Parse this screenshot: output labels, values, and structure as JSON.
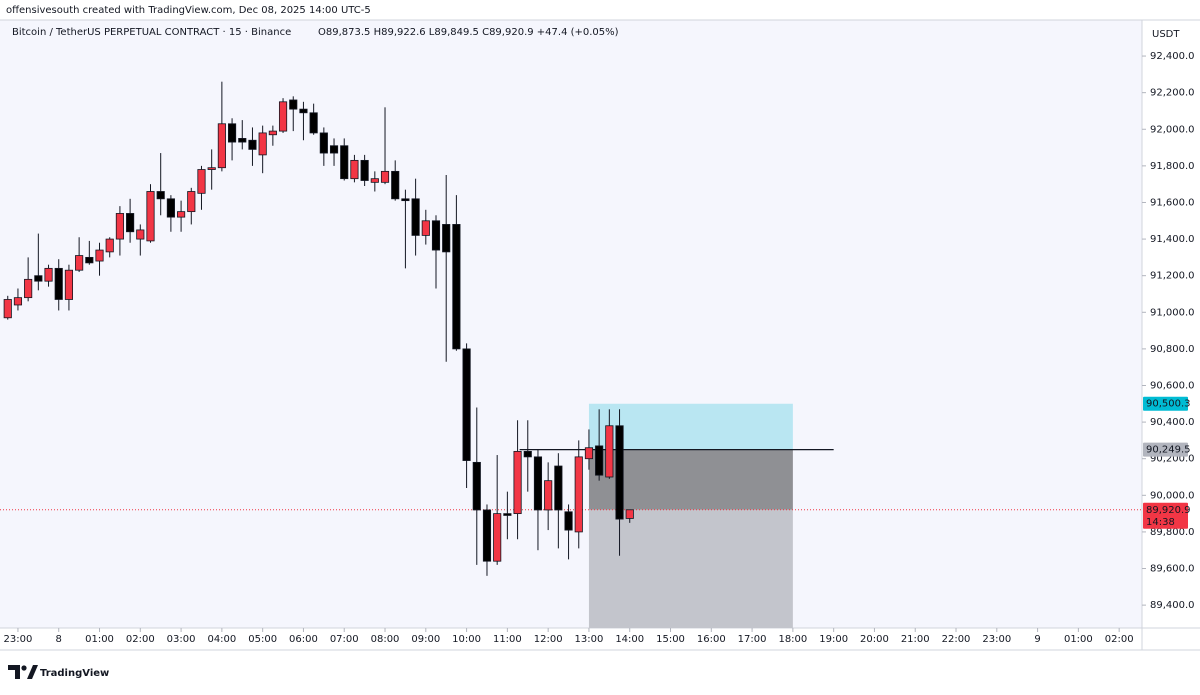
{
  "header": {
    "credit": "offensivesouth created with TradingView.com, Dec 08, 2025 14:00 UTC-5",
    "title": "Bitcoin / TetherUS PERPETUAL CONTRACT · 15 · Binance",
    "ohlc": "O89,873.5  H89,922.6  L89,849.5  C89,920.9  +47.4 (+0.05%)",
    "currency": "USDT"
  },
  "footer": {
    "brand": "TradingView"
  },
  "chart_data": {
    "type": "candlestick",
    "up_color": "#f23645",
    "down_color": "#000000",
    "x": [
      -0.25,
      0,
      0.25,
      0.5,
      0.75,
      1,
      1.25,
      1.5,
      1.75,
      2,
      2.25,
      2.5,
      2.75,
      3,
      3.25,
      3.5,
      3.75,
      4,
      4.25,
      4.5,
      4.75,
      5,
      5.25,
      5.5,
      5.75,
      6,
      6.25,
      6.5,
      6.75,
      7,
      7.25,
      7.5,
      7.75,
      8,
      8.25,
      8.5,
      8.75,
      9,
      9.25,
      9.5,
      9.75,
      10,
      10.25,
      10.5,
      10.75,
      11,
      11.25,
      11.5,
      11.75,
      12,
      12.25,
      12.5,
      12.75,
      13,
      13.25,
      13.5,
      13.75,
      14,
      14.25,
      14.5,
      14.75,
      15
    ],
    "open": [
      90970,
      91040,
      91080,
      91200,
      91170,
      91240,
      91070,
      91230,
      91300,
      91280,
      91330,
      91400,
      91540,
      91400,
      91390,
      91660,
      91620,
      91520,
      91550,
      91650,
      91780,
      91790,
      92030,
      91950,
      91940,
      91860,
      91970,
      91990,
      92160,
      92110,
      92090,
      91980,
      91910,
      91910,
      91730,
      91830,
      91710,
      91710,
      91770,
      91620,
      91620,
      91420,
      91500,
      91480,
      91480,
      90800,
      90180,
      89920,
      89640,
      89900,
      89900,
      90240,
      90210,
      89920,
      90160,
      89910,
      89800,
      90200,
      90270,
      90100,
      90380,
      89873.5
    ],
    "high": [
      91090,
      91130,
      91300,
      91430,
      91260,
      91290,
      91260,
      91410,
      91390,
      91380,
      91410,
      91580,
      91620,
      91480,
      91700,
      91870,
      91640,
      91610,
      91680,
      91800,
      91890,
      92260,
      92060,
      92050,
      92010,
      92020,
      92020,
      92170,
      92180,
      92150,
      92140,
      92010,
      91950,
      91950,
      91860,
      91860,
      91770,
      92120,
      91830,
      91670,
      91730,
      91560,
      91530,
      91750,
      91640,
      90830,
      90480,
      89950,
      90220,
      90020,
      90410,
      90410,
      90250,
      90180,
      90230,
      89950,
      90300,
      90360,
      90470,
      90470,
      90470,
      89922.6
    ],
    "low": [
      90960,
      91010,
      91060,
      91120,
      91140,
      91010,
      91010,
      91220,
      91260,
      91200,
      91300,
      91310,
      91380,
      91310,
      91380,
      91530,
      91440,
      91440,
      91480,
      91560,
      91670,
      91770,
      91830,
      91890,
      91800,
      91760,
      91910,
      91980,
      91990,
      91940,
      91970,
      91800,
      91800,
      91720,
      91710,
      91690,
      91660,
      91700,
      91610,
      91240,
      91310,
      91370,
      91130,
      90730,
      90790,
      90040,
      89620,
      89560,
      89620,
      89760,
      89760,
      90020,
      89700,
      89810,
      89710,
      89650,
      89710,
      90140,
      90080,
      90090,
      89670,
      89849.5
    ],
    "close": [
      91070,
      91080,
      91180,
      91170,
      91240,
      91070,
      91230,
      91310,
      91270,
      91340,
      91400,
      91540,
      91440,
      91450,
      91660,
      91620,
      91520,
      91550,
      91660,
      91780,
      91790,
      92030,
      91930,
      91930,
      91890,
      91980,
      91990,
      92150,
      92110,
      92090,
      91980,
      91870,
      91870,
      91730,
      91830,
      91720,
      91730,
      91770,
      91620,
      91610,
      91420,
      91500,
      91340,
      91330,
      90800,
      90190,
      89920,
      89640,
      89900,
      89890,
      90240,
      90210,
      89920,
      90080,
      89920,
      89810,
      90210,
      90260,
      90110,
      90380,
      89870,
      89920.9
    ],
    "xlim": [
      -0.44,
      27.56
    ],
    "xticks": [
      {
        "value": 0,
        "label": "23:00"
      },
      {
        "value": 1,
        "label": "8"
      },
      {
        "value": 2,
        "label": "01:00"
      },
      {
        "value": 3,
        "label": "02:00"
      },
      {
        "value": 4,
        "label": "03:00"
      },
      {
        "value": 5,
        "label": "04:00"
      },
      {
        "value": 6,
        "label": "05:00"
      },
      {
        "value": 7,
        "label": "06:00"
      },
      {
        "value": 8,
        "label": "07:00"
      },
      {
        "value": 9,
        "label": "08:00"
      },
      {
        "value": 10,
        "label": "09:00"
      },
      {
        "value": 11,
        "label": "10:00"
      },
      {
        "value": 12,
        "label": "11:00"
      },
      {
        "value": 13,
        "label": "12:00"
      },
      {
        "value": 14,
        "label": "13:00"
      },
      {
        "value": 15,
        "label": "14:00"
      },
      {
        "value": 16,
        "label": "15:00"
      },
      {
        "value": 17,
        "label": "16:00"
      },
      {
        "value": 18,
        "label": "17:00"
      },
      {
        "value": 19,
        "label": "18:00"
      },
      {
        "value": 20,
        "label": "19:00"
      },
      {
        "value": 21,
        "label": "20:00"
      },
      {
        "value": 22,
        "label": "21:00"
      },
      {
        "value": 23,
        "label": "22:00"
      },
      {
        "value": 24,
        "label": "23:00"
      },
      {
        "value": 25,
        "label": "9"
      },
      {
        "value": 26,
        "label": "01:00"
      },
      {
        "value": 27,
        "label": "02:00"
      }
    ],
    "ylim": [
      89275,
      92597
    ],
    "yticks": [
      {
        "value": 89400,
        "label": "89,400.0"
      },
      {
        "value": 89600,
        "label": "89,600.0"
      },
      {
        "value": 89800,
        "label": "89,800.0"
      },
      {
        "value": 90000,
        "label": "90,000.0"
      },
      {
        "value": 90200,
        "label": "90,200.0"
      },
      {
        "value": 90400,
        "label": "90,400.0"
      },
      {
        "value": 90600,
        "label": "90,600.0"
      },
      {
        "value": 90800,
        "label": "90,800.0"
      },
      {
        "value": 91000,
        "label": "91,000.0"
      },
      {
        "value": 91200,
        "label": "91,200.0"
      },
      {
        "value": 91400,
        "label": "91,400.0"
      },
      {
        "value": 91600,
        "label": "91,600.0"
      },
      {
        "value": 91800,
        "label": "91,800.0"
      },
      {
        "value": 92000,
        "label": "92,000.0"
      },
      {
        "value": 92200,
        "label": "92,200.0"
      },
      {
        "value": 92400,
        "label": "92,400.0"
      }
    ],
    "position": {
      "start": 14,
      "end": 19,
      "target": 90500.3,
      "entry": 90249.5,
      "stop": 89275,
      "target_color": "#b9e6f2",
      "current_color": "#8f9094",
      "stop_color": "#c3c5cc"
    },
    "entry_line": {
      "start": 12.3,
      "end": 20,
      "value": 90249.5
    },
    "price_tags": [
      {
        "value": 90500.3,
        "label": "90,500.3",
        "color": "#00bcd4"
      },
      {
        "value": 90249.5,
        "label": "90,249.5",
        "color": "#b2b5be"
      },
      {
        "value": 89920.9,
        "label": "89,920.9",
        "color": "#f23645",
        "countdown": "14:38"
      }
    ],
    "current_price_line_color": "#f23645"
  }
}
